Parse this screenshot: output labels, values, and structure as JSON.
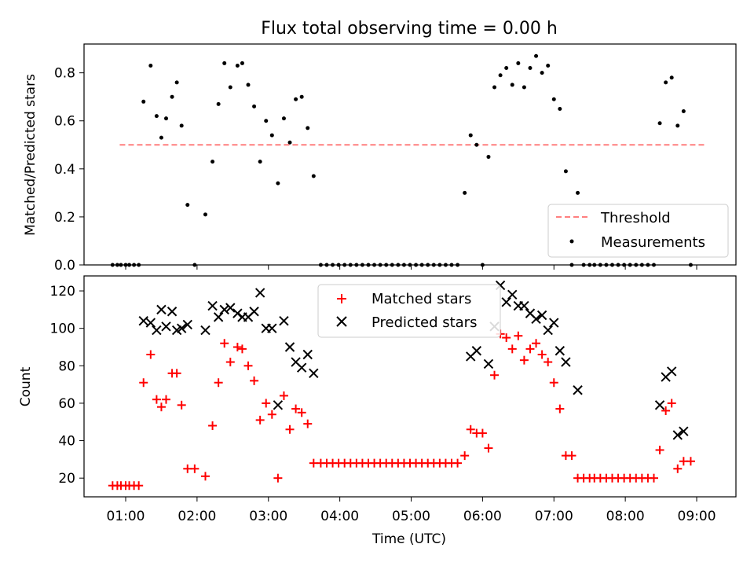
{
  "figure": {
    "title": "Flux total observing time = 0.00 h"
  },
  "chart_data": [
    {
      "type": "scatter",
      "ylabel": "Matched/Predicted stars",
      "xlabel": "",
      "xlim": [
        "00:25",
        "09:33"
      ],
      "ylim": [
        0,
        0.92
      ],
      "yticks": [
        "0.0",
        "0.2",
        "0.4",
        "0.6",
        "0.8"
      ],
      "legend": {
        "placement": "lower-right",
        "entries": [
          "Threshold",
          "Measurements"
        ]
      },
      "series": [
        {
          "name": "Threshold",
          "kind": "dashed-line",
          "color": "#ff7f7f",
          "points": [
            [
              "00:55",
              0.5
            ],
            [
              "09:07",
              0.5
            ]
          ]
        },
        {
          "name": "Measurements",
          "kind": "dots",
          "color": "#000000",
          "points": [
            [
              "00:49",
              0
            ],
            [
              "00:53",
              0
            ],
            [
              "00:56",
              0
            ],
            [
              "01:00",
              0
            ],
            [
              "01:03",
              0
            ],
            [
              "01:07",
              0
            ],
            [
              "01:11",
              0
            ],
            [
              "01:15",
              0.68
            ],
            [
              "01:21",
              0.83
            ],
            [
              "01:26",
              0.62
            ],
            [
              "01:30",
              0.53
            ],
            [
              "01:34",
              0.61
            ],
            [
              "01:39",
              0.7
            ],
            [
              "01:43",
              0.76
            ],
            [
              "01:47",
              0.58
            ],
            [
              "01:52",
              0.25
            ],
            [
              "01:58",
              0
            ],
            [
              "02:07",
              0.21
            ],
            [
              "02:13",
              0.43
            ],
            [
              "02:18",
              0.67
            ],
            [
              "02:23",
              0.84
            ],
            [
              "02:28",
              0.74
            ],
            [
              "02:34",
              0.83
            ],
            [
              "02:38",
              0.84
            ],
            [
              "02:43",
              0.75
            ],
            [
              "02:48",
              0.66
            ],
            [
              "02:53",
              0.43
            ],
            [
              "02:58",
              0.6
            ],
            [
              "03:03",
              0.54
            ],
            [
              "03:08",
              0.34
            ],
            [
              "03:13",
              0.61
            ],
            [
              "03:18",
              0.51
            ],
            [
              "03:23",
              0.69
            ],
            [
              "03:28",
              0.7
            ],
            [
              "03:33",
              0.57
            ],
            [
              "03:38",
              0.37
            ],
            [
              "03:44",
              0
            ],
            [
              "03:49",
              0
            ],
            [
              "03:54",
              0
            ],
            [
              "03:59",
              0
            ],
            [
              "04:04",
              0
            ],
            [
              "04:09",
              0
            ],
            [
              "04:14",
              0
            ],
            [
              "04:19",
              0
            ],
            [
              "04:24",
              0
            ],
            [
              "04:29",
              0
            ],
            [
              "04:34",
              0
            ],
            [
              "04:39",
              0
            ],
            [
              "04:44",
              0
            ],
            [
              "04:49",
              0
            ],
            [
              "04:54",
              0
            ],
            [
              "04:59",
              0
            ],
            [
              "05:04",
              0
            ],
            [
              "05:09",
              0
            ],
            [
              "05:14",
              0
            ],
            [
              "05:19",
              0
            ],
            [
              "05:24",
              0
            ],
            [
              "05:29",
              0
            ],
            [
              "05:34",
              0
            ],
            [
              "05:39",
              0
            ],
            [
              "05:45",
              0.3
            ],
            [
              "05:50",
              0.54
            ],
            [
              "05:55",
              0.5
            ],
            [
              "06:00",
              0
            ],
            [
              "06:05",
              0.45
            ],
            [
              "06:10",
              0.74
            ],
            [
              "06:15",
              0.79
            ],
            [
              "06:20",
              0.82
            ],
            [
              "06:25",
              0.75
            ],
            [
              "06:30",
              0.84
            ],
            [
              "06:35",
              0.74
            ],
            [
              "06:40",
              0.82
            ],
            [
              "06:45",
              0.87
            ],
            [
              "06:50",
              0.8
            ],
            [
              "06:55",
              0.83
            ],
            [
              "07:00",
              0.69
            ],
            [
              "07:05",
              0.65
            ],
            [
              "07:10",
              0.39
            ],
            [
              "07:15",
              0
            ],
            [
              "07:20",
              0.3
            ],
            [
              "07:25",
              0
            ],
            [
              "07:30",
              0
            ],
            [
              "07:34",
              0
            ],
            [
              "07:39",
              0
            ],
            [
              "07:44",
              0
            ],
            [
              "07:49",
              0
            ],
            [
              "07:54",
              0
            ],
            [
              "07:59",
              0
            ],
            [
              "08:04",
              0
            ],
            [
              "08:09",
              0
            ],
            [
              "08:14",
              0
            ],
            [
              "08:19",
              0
            ],
            [
              "08:24",
              0
            ],
            [
              "08:29",
              0.59
            ],
            [
              "08:34",
              0.76
            ],
            [
              "08:39",
              0.78
            ],
            [
              "08:44",
              0.58
            ],
            [
              "08:49",
              0.64
            ],
            [
              "08:55",
              0
            ]
          ]
        }
      ]
    },
    {
      "type": "scatter",
      "ylabel": "Count",
      "xlabel": "Time (UTC)",
      "xlim": [
        "00:25",
        "09:33"
      ],
      "ylim": [
        10,
        128
      ],
      "xticks": [
        "01:00",
        "02:00",
        "03:00",
        "04:00",
        "05:00",
        "06:00",
        "07:00",
        "08:00",
        "09:00"
      ],
      "yticks": [
        "20",
        "40",
        "60",
        "80",
        "100",
        "120"
      ],
      "legend": {
        "placement": "upper-center",
        "entries": [
          "Matched stars",
          "Predicted stars"
        ]
      },
      "series": [
        {
          "name": "Matched stars",
          "kind": "plus",
          "color": "#ff0000",
          "points": [
            [
              "00:49",
              16
            ],
            [
              "00:53",
              16
            ],
            [
              "00:56",
              16
            ],
            [
              "01:00",
              16
            ],
            [
              "01:03",
              16
            ],
            [
              "01:07",
              16
            ],
            [
              "01:11",
              16
            ],
            [
              "01:15",
              71
            ],
            [
              "01:21",
              86
            ],
            [
              "01:26",
              62
            ],
            [
              "01:30",
              58
            ],
            [
              "01:34",
              62
            ],
            [
              "01:39",
              76
            ],
            [
              "01:43",
              76
            ],
            [
              "01:47",
              59
            ],
            [
              "01:52",
              25
            ],
            [
              "01:58",
              25
            ],
            [
              "02:07",
              21
            ],
            [
              "02:13",
              48
            ],
            [
              "02:18",
              71
            ],
            [
              "02:23",
              92
            ],
            [
              "02:28",
              82
            ],
            [
              "02:34",
              90
            ],
            [
              "02:38",
              89
            ],
            [
              "02:43",
              80
            ],
            [
              "02:48",
              72
            ],
            [
              "02:53",
              51
            ],
            [
              "02:58",
              60
            ],
            [
              "03:03",
              54
            ],
            [
              "03:08",
              20
            ],
            [
              "03:13",
              64
            ],
            [
              "03:18",
              46
            ],
            [
              "03:23",
              57
            ],
            [
              "03:28",
              55
            ],
            [
              "03:33",
              49
            ],
            [
              "03:38",
              28
            ],
            [
              "03:44",
              28
            ],
            [
              "03:49",
              28
            ],
            [
              "03:54",
              28
            ],
            [
              "03:59",
              28
            ],
            [
              "04:04",
              28
            ],
            [
              "04:09",
              28
            ],
            [
              "04:14",
              28
            ],
            [
              "04:19",
              28
            ],
            [
              "04:24",
              28
            ],
            [
              "04:29",
              28
            ],
            [
              "04:34",
              28
            ],
            [
              "04:39",
              28
            ],
            [
              "04:44",
              28
            ],
            [
              "04:49",
              28
            ],
            [
              "04:54",
              28
            ],
            [
              "04:59",
              28
            ],
            [
              "05:04",
              28
            ],
            [
              "05:09",
              28
            ],
            [
              "05:14",
              28
            ],
            [
              "05:19",
              28
            ],
            [
              "05:24",
              28
            ],
            [
              "05:29",
              28
            ],
            [
              "05:34",
              28
            ],
            [
              "05:39",
              28
            ],
            [
              "05:45",
              32
            ],
            [
              "05:50",
              46
            ],
            [
              "05:55",
              44
            ],
            [
              "06:00",
              44
            ],
            [
              "06:05",
              36
            ],
            [
              "06:10",
              75
            ],
            [
              "06:15",
              97
            ],
            [
              "06:20",
              95
            ],
            [
              "06:25",
              89
            ],
            [
              "06:30",
              96
            ],
            [
              "06:35",
              83
            ],
            [
              "06:40",
              89
            ],
            [
              "06:45",
              92
            ],
            [
              "06:50",
              86
            ],
            [
              "06:55",
              82
            ],
            [
              "07:00",
              71
            ],
            [
              "07:05",
              57
            ],
            [
              "07:10",
              32
            ],
            [
              "07:15",
              32
            ],
            [
              "07:20",
              20
            ],
            [
              "07:25",
              20
            ],
            [
              "07:30",
              20
            ],
            [
              "07:34",
              20
            ],
            [
              "07:39",
              20
            ],
            [
              "07:44",
              20
            ],
            [
              "07:49",
              20
            ],
            [
              "07:54",
              20
            ],
            [
              "07:59",
              20
            ],
            [
              "08:04",
              20
            ],
            [
              "08:09",
              20
            ],
            [
              "08:14",
              20
            ],
            [
              "08:19",
              20
            ],
            [
              "08:24",
              20
            ],
            [
              "08:29",
              35
            ],
            [
              "08:34",
              56
            ],
            [
              "08:39",
              60
            ],
            [
              "08:44",
              25
            ],
            [
              "08:49",
              29
            ],
            [
              "08:55",
              29
            ]
          ]
        },
        {
          "name": "Predicted stars",
          "kind": "x",
          "color": "#000000",
          "points": [
            [
              "01:15",
              104
            ],
            [
              "01:21",
              103
            ],
            [
              "01:26",
              99
            ],
            [
              "01:30",
              110
            ],
            [
              "01:34",
              101
            ],
            [
              "01:39",
              109
            ],
            [
              "01:43",
              99
            ],
            [
              "01:47",
              100
            ],
            [
              "01:52",
              102
            ],
            [
              "02:07",
              99
            ],
            [
              "02:13",
              112
            ],
            [
              "02:18",
              106
            ],
            [
              "02:23",
              110
            ],
            [
              "02:28",
              111
            ],
            [
              "02:34",
              108
            ],
            [
              "02:38",
              106
            ],
            [
              "02:43",
              106
            ],
            [
              "02:48",
              109
            ],
            [
              "02:53",
              119
            ],
            [
              "02:58",
              100
            ],
            [
              "03:03",
              100
            ],
            [
              "03:08",
              59
            ],
            [
              "03:13",
              104
            ],
            [
              "03:18",
              90
            ],
            [
              "03:23",
              82
            ],
            [
              "03:28",
              79
            ],
            [
              "03:33",
              86
            ],
            [
              "03:38",
              76
            ],
            [
              "05:50",
              85
            ],
            [
              "05:55",
              88
            ],
            [
              "06:05",
              81
            ],
            [
              "06:10",
              101
            ],
            [
              "06:15",
              123
            ],
            [
              "06:20",
              114
            ],
            [
              "06:25",
              118
            ],
            [
              "06:30",
              112
            ],
            [
              "06:35",
              112
            ],
            [
              "06:40",
              108
            ],
            [
              "06:45",
              105
            ],
            [
              "06:50",
              107
            ],
            [
              "06:55",
              99
            ],
            [
              "07:00",
              103
            ],
            [
              "07:05",
              88
            ],
            [
              "07:10",
              82
            ],
            [
              "07:20",
              67
            ],
            [
              "08:29",
              59
            ],
            [
              "08:34",
              74
            ],
            [
              "08:39",
              77
            ],
            [
              "08:44",
              43
            ],
            [
              "08:49",
              45
            ]
          ]
        }
      ]
    }
  ]
}
